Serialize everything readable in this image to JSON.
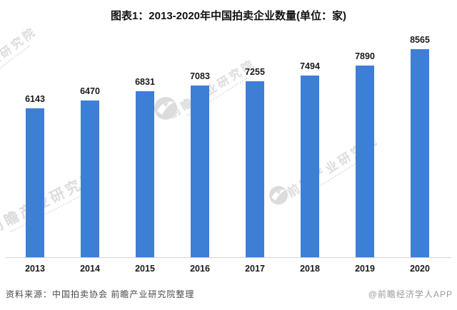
{
  "title": "图表1：2013-2020年中国拍卖企业数量(单位：家)",
  "chart_data": {
    "type": "bar",
    "categories": [
      "2013",
      "2014",
      "2015",
      "2016",
      "2017",
      "2018",
      "2019",
      "2020"
    ],
    "values": [
      6143,
      6470,
      6831,
      7083,
      7255,
      7494,
      7890,
      8565
    ],
    "title": "图表1：2013-2020年中国拍卖企业数量(单位：家)",
    "xlabel": "",
    "ylabel": "",
    "unit": "家",
    "ylim": [
      0,
      8565
    ],
    "grid": false,
    "legend": "none",
    "value_labels_shown": true,
    "bar_color": "#3E7FD6"
  },
  "footer": {
    "source": "资料来源：中国拍卖协会 前瞻产业研究院整理",
    "credit": "@前瞻经济学人APP"
  },
  "watermark": {
    "text": "前瞻产业研究院",
    "logo": "qianzhan-circle-logo"
  },
  "colors": {
    "bar": "#3E7FD6",
    "axis_line": "#D4D4D4",
    "watermark": "#DCDCDC",
    "title_text": "#111111",
    "label_text": "#1A1A1A",
    "source_text": "#4A4A4A",
    "credit_text": "#9A9A9A",
    "background": "#FFFFFF"
  }
}
